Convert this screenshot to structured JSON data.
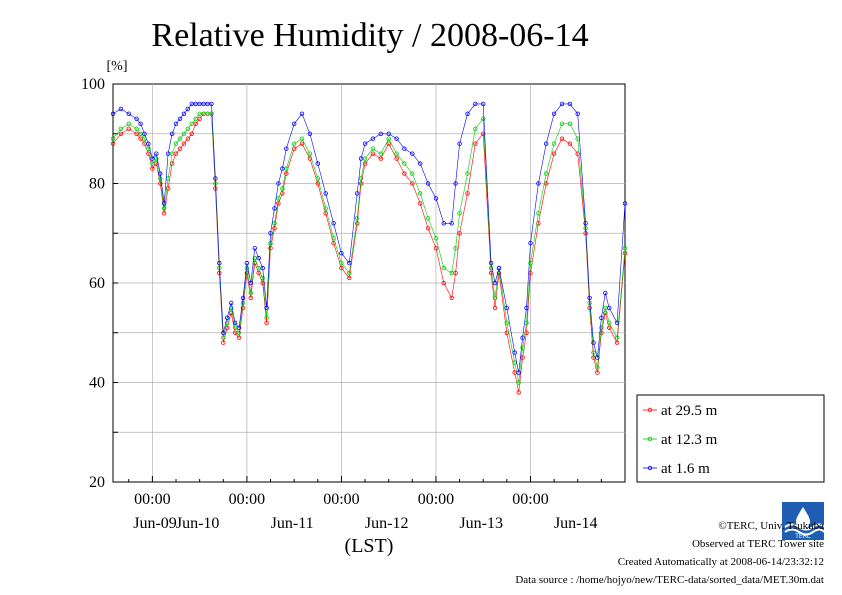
{
  "chart_data": {
    "type": "line",
    "title": "Relative Humidity / 2008-06-14",
    "ylabel": "[%]",
    "xlabel": "(LST)",
    "ylim": [
      20,
      100
    ],
    "y_ticks": [
      "20",
      "40",
      "60",
      "80",
      "100"
    ],
    "x_unit": "hours after 2008-06-08 00:00 LST",
    "xlim": [
      14,
      144
    ],
    "time_tick_labels": [
      "00:00",
      "00:00",
      "00:00",
      "00:00",
      "00:00"
    ],
    "date_labels": [
      "Jun-09",
      "Jun-10",
      "Jun-11",
      "Jun-12",
      "Jun-13",
      "Jun-14"
    ],
    "grid": true,
    "legend_position": "right",
    "series": [
      {
        "name": "at 29.5 m",
        "color": "#ff0000",
        "x": [
          14,
          16,
          18,
          20,
          21,
          22,
          23,
          24,
          25,
          26,
          27,
          28,
          29,
          30,
          31,
          32,
          33,
          34,
          35,
          36,
          37,
          38,
          39,
          40,
          41,
          42,
          43,
          44,
          45,
          46,
          47,
          48,
          49,
          50,
          51,
          52,
          53,
          54,
          55,
          56,
          57,
          58,
          60,
          62,
          64,
          66,
          68,
          70,
          72,
          74,
          76,
          77,
          78,
          80,
          82,
          84,
          86,
          88,
          90,
          92,
          94,
          96,
          98,
          100,
          101,
          102,
          104,
          106,
          108,
          110,
          111,
          112,
          114,
          116,
          117,
          118,
          119,
          120,
          122,
          124,
          126,
          128,
          130,
          132,
          134,
          135,
          136,
          137,
          138,
          139,
          140,
          142,
          144
        ],
        "y": [
          88,
          90,
          91,
          90,
          89,
          88,
          86,
          83,
          84,
          80,
          74,
          79,
          84,
          86,
          87,
          88,
          89,
          90,
          92,
          93,
          94,
          94,
          94,
          79,
          62,
          48,
          51,
          54,
          50,
          49,
          55,
          62,
          57,
          64,
          62,
          60,
          52,
          67,
          71,
          76,
          78,
          82,
          87,
          88,
          85,
          80,
          74,
          68,
          63,
          61,
          72,
          80,
          84,
          86,
          85,
          88,
          85,
          82,
          80,
          76,
          71,
          67,
          60,
          57,
          62,
          70,
          78,
          88,
          90,
          62,
          55,
          62,
          50,
          42,
          38,
          45,
          50,
          62,
          72,
          80,
          86,
          89,
          88,
          86,
          70,
          55,
          45,
          42,
          50,
          54,
          51,
          48,
          66
        ]
      },
      {
        "name": "at 12.3 m",
        "color": "#00cc00",
        "x": [
          14,
          16,
          18,
          20,
          21,
          22,
          23,
          24,
          25,
          26,
          27,
          28,
          29,
          30,
          31,
          32,
          33,
          34,
          35,
          36,
          37,
          38,
          39,
          40,
          41,
          42,
          43,
          44,
          45,
          46,
          47,
          48,
          49,
          50,
          51,
          52,
          53,
          54,
          55,
          56,
          57,
          58,
          60,
          62,
          64,
          66,
          68,
          70,
          72,
          74,
          76,
          77,
          78,
          80,
          82,
          84,
          86,
          88,
          90,
          92,
          94,
          96,
          98,
          100,
          101,
          102,
          104,
          106,
          108,
          110,
          111,
          112,
          114,
          116,
          117,
          118,
          119,
          120,
          122,
          124,
          126,
          128,
          130,
          132,
          134,
          135,
          136,
          137,
          138,
          139,
          140,
          142,
          144
        ],
        "y": [
          89,
          91,
          92,
          91,
          90,
          89,
          87,
          84,
          85,
          81,
          75,
          81,
          86,
          88,
          89,
          90,
          91,
          92,
          93,
          94,
          94,
          94,
          94,
          80,
          63,
          49,
          52,
          55,
          51,
          50,
          56,
          63,
          58,
          65,
          63,
          61,
          53,
          68,
          72,
          77,
          79,
          83,
          88,
          89,
          86,
          81,
          75,
          69,
          64,
          62,
          73,
          81,
          85,
          87,
          86,
          89,
          86,
          84,
          82,
          78,
          73,
          69,
          63,
          62,
          67,
          74,
          82,
          91,
          93,
          63,
          57,
          63,
          52,
          44,
          40,
          47,
          52,
          64,
          74,
          82,
          88,
          92,
          92,
          89,
          71,
          56,
          46,
          43,
          51,
          55,
          52,
          49,
          67
        ]
      },
      {
        "name": "at 1.6 m",
        "color": "#0000ff",
        "x": [
          14,
          16,
          18,
          20,
          21,
          22,
          23,
          24,
          25,
          26,
          27,
          28,
          29,
          30,
          31,
          32,
          33,
          34,
          35,
          36,
          37,
          38,
          39,
          40,
          41,
          42,
          43,
          44,
          45,
          46,
          47,
          48,
          49,
          50,
          51,
          52,
          53,
          54,
          55,
          56,
          57,
          58,
          60,
          62,
          64,
          66,
          68,
          70,
          72,
          74,
          76,
          77,
          78,
          80,
          82,
          84,
          86,
          88,
          90,
          92,
          94,
          96,
          98,
          100,
          101,
          102,
          104,
          106,
          108,
          110,
          111,
          112,
          114,
          116,
          117,
          118,
          119,
          120,
          122,
          124,
          126,
          128,
          130,
          132,
          134,
          135,
          136,
          137,
          138,
          139,
          140,
          142,
          144
        ],
        "y": [
          94,
          95,
          94,
          93,
          92,
          90,
          88,
          85,
          86,
          82,
          76,
          86,
          90,
          92,
          93,
          94,
          95,
          96,
          96,
          96,
          96,
          96,
          96,
          81,
          64,
          50,
          53,
          56,
          52,
          51,
          57,
          64,
          60,
          67,
          65,
          63,
          55,
          70,
          75,
          80,
          83,
          87,
          92,
          94,
          90,
          84,
          78,
          72,
          66,
          64,
          78,
          85,
          88,
          89,
          90,
          90,
          89,
          87,
          86,
          84,
          80,
          77,
          72,
          72,
          80,
          88,
          94,
          96,
          96,
          64,
          60,
          63,
          55,
          46,
          42,
          49,
          55,
          68,
          80,
          88,
          94,
          96,
          96,
          94,
          72,
          57,
          48,
          45,
          53,
          58,
          55,
          52,
          76
        ]
      }
    ]
  },
  "footer": {
    "copyright": "©TERC, Univ. Tsukuba",
    "observed": "Observed at TERC Tower site",
    "created": "Created Automatically at 2008-06-14/23:32:12",
    "source": "Data source : /home/hojyo/new/TERC-data/sorted_data/MET.30m.dat"
  },
  "logo": {
    "text": "TERC"
  }
}
